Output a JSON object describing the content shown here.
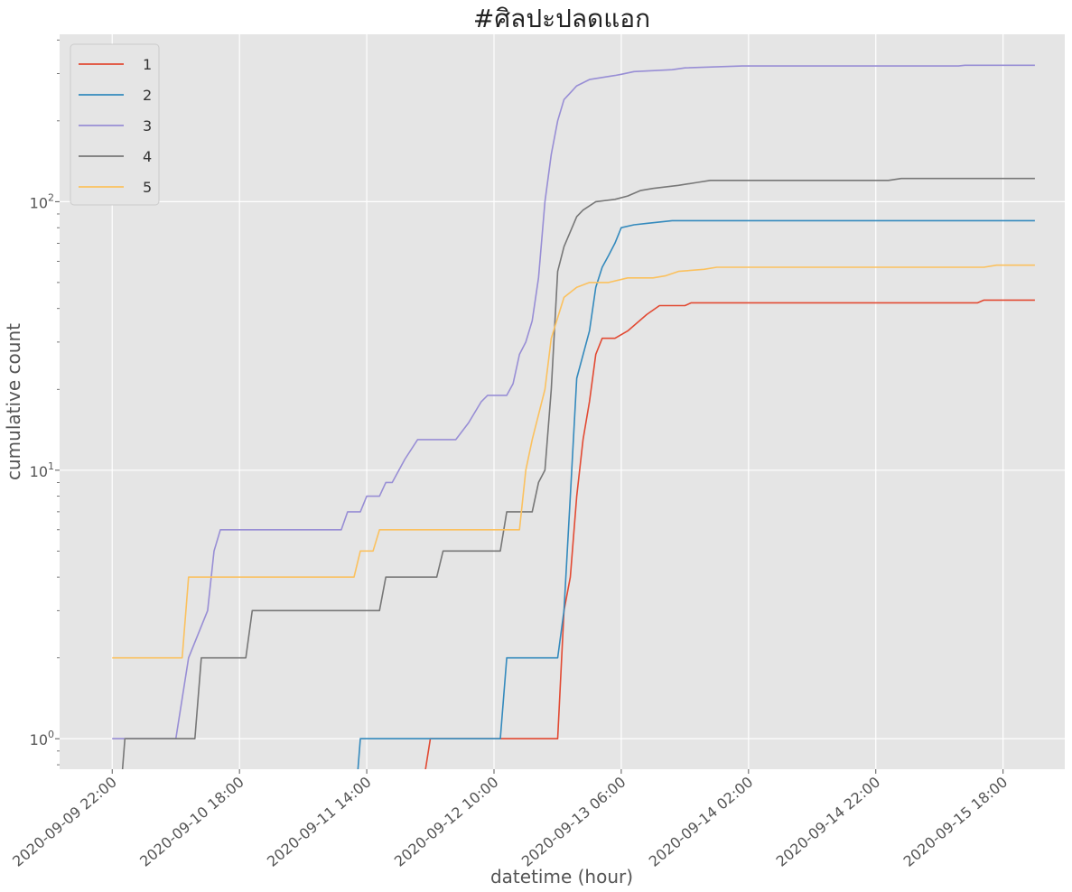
{
  "chart_data": {
    "type": "line",
    "title": "#ศิลปะปลดแอก",
    "xlabel": "datetime (hour)",
    "ylabel": "cumulative count",
    "yscale": "log",
    "ylim": [
      0.77,
      420
    ],
    "xlim": [
      "2020-09-09 13:44",
      "2020-09-16 03:42"
    ],
    "x_ticks": [
      "2020-09-09 22:00",
      "2020-09-10 18:00",
      "2020-09-11 14:00",
      "2020-09-12 10:00",
      "2020-09-13 06:00",
      "2020-09-14 02:00",
      "2020-09-14 22:00",
      "2020-09-15 18:00"
    ],
    "y_ticks": [
      {
        "value": 1,
        "base": "10",
        "exp": "0"
      },
      {
        "value": 10,
        "base": "10",
        "exp": "1"
      },
      {
        "value": 100,
        "base": "10",
        "exp": "2"
      }
    ],
    "grid": true,
    "legend_position": "top-left",
    "series": [
      {
        "name": "1",
        "color": "#E24A33",
        "points": [
          [
            "2020-09-11 22:00",
            0.5
          ],
          [
            "2020-09-12 00:00",
            1
          ],
          [
            "2020-09-12 20:00",
            1
          ],
          [
            "2020-09-12 21:00",
            3
          ],
          [
            "2020-09-12 22:00",
            4
          ],
          [
            "2020-09-12 23:00",
            8
          ],
          [
            "2020-09-13 00:00",
            13
          ],
          [
            "2020-09-13 01:00",
            18
          ],
          [
            "2020-09-13 02:00",
            27
          ],
          [
            "2020-09-13 03:00",
            31
          ],
          [
            "2020-09-13 05:00",
            31
          ],
          [
            "2020-09-13 07:00",
            33
          ],
          [
            "2020-09-13 10:00",
            38
          ],
          [
            "2020-09-13 12:00",
            41
          ],
          [
            "2020-09-13 16:00",
            41
          ],
          [
            "2020-09-13 17:00",
            42
          ],
          [
            "2020-09-15 14:00",
            42
          ],
          [
            "2020-09-15 15:00",
            43
          ],
          [
            "2020-09-15 23:00",
            43
          ]
        ]
      },
      {
        "name": "2",
        "color": "#348ABD",
        "points": [
          [
            "2020-09-11 12:00",
            0.5
          ],
          [
            "2020-09-11 13:00",
            1
          ],
          [
            "2020-09-12 11:00",
            1
          ],
          [
            "2020-09-12 12:00",
            2
          ],
          [
            "2020-09-12 20:00",
            2
          ],
          [
            "2020-09-12 21:00",
            3
          ],
          [
            "2020-09-12 22:00",
            8
          ],
          [
            "2020-09-12 23:00",
            22
          ],
          [
            "2020-09-13 01:00",
            33
          ],
          [
            "2020-09-13 02:00",
            48
          ],
          [
            "2020-09-13 03:00",
            57
          ],
          [
            "2020-09-13 04:00",
            63
          ],
          [
            "2020-09-13 05:00",
            70
          ],
          [
            "2020-09-13 06:00",
            80
          ],
          [
            "2020-09-13 08:00",
            82
          ],
          [
            "2020-09-13 10:00",
            83
          ],
          [
            "2020-09-13 14:00",
            85
          ],
          [
            "2020-09-15 23:00",
            85
          ]
        ]
      },
      {
        "name": "3",
        "color": "#988ED5",
        "points": [
          [
            "2020-09-09 22:00",
            1
          ],
          [
            "2020-09-10 08:00",
            1
          ],
          [
            "2020-09-10 10:00",
            2
          ],
          [
            "2020-09-10 13:00",
            3
          ],
          [
            "2020-09-10 14:00",
            5
          ],
          [
            "2020-09-10 15:00",
            6
          ],
          [
            "2020-09-11 10:00",
            6
          ],
          [
            "2020-09-11 11:00",
            7
          ],
          [
            "2020-09-11 13:00",
            7
          ],
          [
            "2020-09-11 14:00",
            8
          ],
          [
            "2020-09-11 16:00",
            8
          ],
          [
            "2020-09-11 17:00",
            9
          ],
          [
            "2020-09-11 18:00",
            9
          ],
          [
            "2020-09-11 20:00",
            11
          ],
          [
            "2020-09-11 22:00",
            13
          ],
          [
            "2020-09-12 04:00",
            13
          ],
          [
            "2020-09-12 06:00",
            15
          ],
          [
            "2020-09-12 08:00",
            18
          ],
          [
            "2020-09-12 09:00",
            19
          ],
          [
            "2020-09-12 12:00",
            19
          ],
          [
            "2020-09-12 13:00",
            21
          ],
          [
            "2020-09-12 14:00",
            27
          ],
          [
            "2020-09-12 15:00",
            30
          ],
          [
            "2020-09-12 16:00",
            36
          ],
          [
            "2020-09-12 17:00",
            52
          ],
          [
            "2020-09-12 18:00",
            100
          ],
          [
            "2020-09-12 19:00",
            150
          ],
          [
            "2020-09-12 20:00",
            200
          ],
          [
            "2020-09-12 21:00",
            240
          ],
          [
            "2020-09-12 23:00",
            270
          ],
          [
            "2020-09-13 01:00",
            285
          ],
          [
            "2020-09-13 03:00",
            290
          ],
          [
            "2020-09-13 05:00",
            295
          ],
          [
            "2020-09-13 06:00",
            298
          ],
          [
            "2020-09-13 08:00",
            305
          ],
          [
            "2020-09-13 14:00",
            310
          ],
          [
            "2020-09-13 16:00",
            315
          ],
          [
            "2020-09-14 01:00",
            320
          ],
          [
            "2020-09-15 11:00",
            320
          ],
          [
            "2020-09-15 12:00",
            322
          ],
          [
            "2020-09-15 23:00",
            322
          ]
        ]
      },
      {
        "name": "4",
        "color": "#777777",
        "points": [
          [
            "2020-09-09 23:00",
            0.5
          ],
          [
            "2020-09-10 00:00",
            1
          ],
          [
            "2020-09-10 11:00",
            1
          ],
          [
            "2020-09-10 12:00",
            2
          ],
          [
            "2020-09-10 19:00",
            2
          ],
          [
            "2020-09-10 20:00",
            3
          ],
          [
            "2020-09-11 16:00",
            3
          ],
          [
            "2020-09-11 17:00",
            4
          ],
          [
            "2020-09-12 01:00",
            4
          ],
          [
            "2020-09-12 02:00",
            5
          ],
          [
            "2020-09-12 11:00",
            5
          ],
          [
            "2020-09-12 12:00",
            7
          ],
          [
            "2020-09-12 16:00",
            7
          ],
          [
            "2020-09-12 17:00",
            9
          ],
          [
            "2020-09-12 18:00",
            10
          ],
          [
            "2020-09-12 19:00",
            20
          ],
          [
            "2020-09-12 20:00",
            55
          ],
          [
            "2020-09-12 21:00",
            68
          ],
          [
            "2020-09-12 23:00",
            88
          ],
          [
            "2020-09-13 00:00",
            93
          ],
          [
            "2020-09-13 02:00",
            100
          ],
          [
            "2020-09-13 05:00",
            102
          ],
          [
            "2020-09-13 07:00",
            105
          ],
          [
            "2020-09-13 09:00",
            110
          ],
          [
            "2020-09-13 11:00",
            112
          ],
          [
            "2020-09-13 15:00",
            115
          ],
          [
            "2020-09-13 18:00",
            118
          ],
          [
            "2020-09-13 20:00",
            120
          ],
          [
            "2020-09-15 00:00",
            120
          ],
          [
            "2020-09-15 02:00",
            122
          ],
          [
            "2020-09-15 23:00",
            122
          ]
        ]
      },
      {
        "name": "5",
        "color": "#FBC15E",
        "points": [
          [
            "2020-09-09 22:00",
            2
          ],
          [
            "2020-09-10 09:00",
            2
          ],
          [
            "2020-09-10 10:00",
            4
          ],
          [
            "2020-09-11 12:00",
            4
          ],
          [
            "2020-09-11 13:00",
            5
          ],
          [
            "2020-09-11 15:00",
            5
          ],
          [
            "2020-09-11 16:00",
            6
          ],
          [
            "2020-09-12 14:00",
            6
          ],
          [
            "2020-09-12 15:00",
            10
          ],
          [
            "2020-09-12 16:00",
            13
          ],
          [
            "2020-09-12 18:00",
            20
          ],
          [
            "2020-09-12 19:00",
            31
          ],
          [
            "2020-09-12 21:00",
            44
          ],
          [
            "2020-09-12 23:00",
            48
          ],
          [
            "2020-09-13 01:00",
            50
          ],
          [
            "2020-09-13 04:00",
            50
          ],
          [
            "2020-09-13 07:00",
            52
          ],
          [
            "2020-09-13 11:00",
            52
          ],
          [
            "2020-09-13 13:00",
            53
          ],
          [
            "2020-09-13 15:00",
            55
          ],
          [
            "2020-09-13 19:00",
            56
          ],
          [
            "2020-09-13 21:00",
            57
          ],
          [
            "2020-09-15 15:00",
            57
          ],
          [
            "2020-09-15 17:00",
            58
          ],
          [
            "2020-09-15 23:00",
            58
          ]
        ]
      }
    ]
  }
}
